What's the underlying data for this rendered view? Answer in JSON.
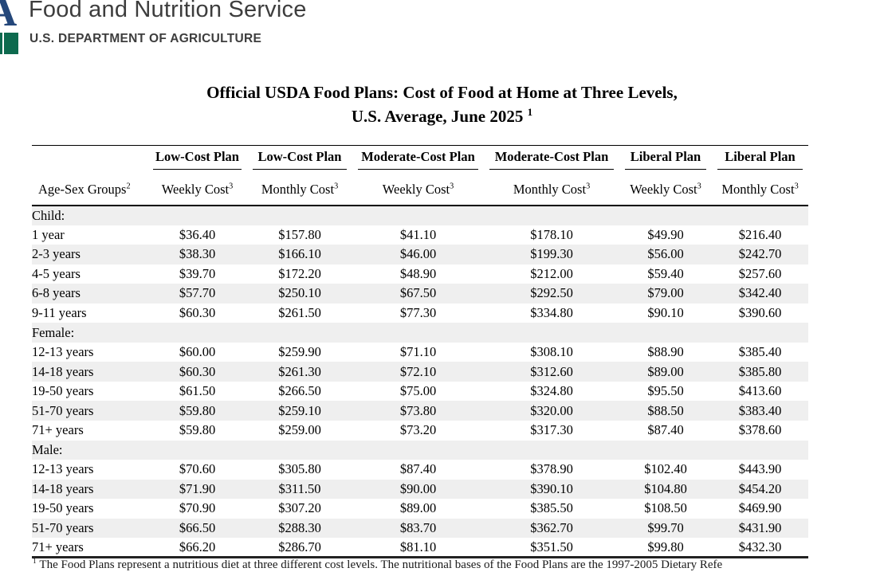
{
  "agency_header": {
    "name": "Food and Nutrition Service",
    "department": "U.S. DEPARTMENT OF AGRICULTURE",
    "logo": {
      "letter": "A",
      "blue": "#24477a",
      "green": "#0d6a4e"
    }
  },
  "title": {
    "line1": "Official USDA Food Plans: Cost of Food at Home at Three Levels,",
    "line2": "U.S. Average, June 2025",
    "footnote_ref": "1"
  },
  "table": {
    "row_header_label": "Age-Sex Groups",
    "row_header_sup": "2",
    "plan_columns": [
      {
        "plan": "Low-Cost Plan",
        "cost": "Weekly Cost",
        "sup": "3"
      },
      {
        "plan": "Low-Cost Plan",
        "cost": "Monthly Cost",
        "sup": "3"
      },
      {
        "plan": "Moderate-Cost Plan",
        "cost": "Weekly Cost",
        "sup": "3"
      },
      {
        "plan": "Moderate-Cost Plan",
        "cost": "Monthly Cost",
        "sup": "3"
      },
      {
        "plan": "Liberal Plan",
        "cost": "Weekly Cost",
        "sup": "3"
      },
      {
        "plan": "Liberal Plan",
        "cost": "Monthly Cost",
        "sup": "3"
      }
    ],
    "sections": [
      {
        "label": "Child:",
        "rows": [
          {
            "group": "1 year",
            "values": [
              "$36.40",
              "$157.80",
              "$41.10",
              "$178.10",
              "$49.90",
              "$216.40"
            ]
          },
          {
            "group": "2-3 years",
            "values": [
              "$38.30",
              "$166.10",
              "$46.00",
              "$199.30",
              "$56.00",
              "$242.70"
            ]
          },
          {
            "group": "4-5 years",
            "values": [
              "$39.70",
              "$172.20",
              "$48.90",
              "$212.00",
              "$59.40",
              "$257.60"
            ]
          },
          {
            "group": "6-8 years",
            "values": [
              "$57.70",
              "$250.10",
              "$67.50",
              "$292.50",
              "$79.00",
              "$342.40"
            ]
          },
          {
            "group": "9-11 years",
            "values": [
              "$60.30",
              "$261.50",
              "$77.30",
              "$334.80",
              "$90.10",
              "$390.60"
            ]
          }
        ]
      },
      {
        "label": "Female:",
        "rows": [
          {
            "group": "12-13 years",
            "values": [
              "$60.00",
              "$259.90",
              "$71.10",
              "$308.10",
              "$88.90",
              "$385.40"
            ]
          },
          {
            "group": "14-18 years",
            "values": [
              "$60.30",
              "$261.30",
              "$72.10",
              "$312.60",
              "$89.00",
              "$385.80"
            ]
          },
          {
            "group": "19-50 years",
            "values": [
              "$61.50",
              "$266.50",
              "$75.00",
              "$324.80",
              "$95.50",
              "$413.60"
            ]
          },
          {
            "group": "51-70 years",
            "values": [
              "$59.80",
              "$259.10",
              "$73.80",
              "$320.00",
              "$88.50",
              "$383.40"
            ]
          },
          {
            "group": "71+ years",
            "values": [
              "$59.80",
              "$259.00",
              "$73.20",
              "$317.30",
              "$87.40",
              "$378.60"
            ]
          }
        ]
      },
      {
        "label": "Male:",
        "rows": [
          {
            "group": "12-13 years",
            "values": [
              "$70.60",
              "$305.80",
              "$87.40",
              "$378.90",
              "$102.40",
              "$443.90"
            ]
          },
          {
            "group": "14-18 years",
            "values": [
              "$71.90",
              "$311.50",
              "$90.00",
              "$390.10",
              "$104.80",
              "$454.20"
            ]
          },
          {
            "group": "19-50 years",
            "values": [
              "$70.90",
              "$307.20",
              "$89.00",
              "$385.50",
              "$108.50",
              "$469.90"
            ]
          },
          {
            "group": "51-70 years",
            "values": [
              "$66.50",
              "$288.30",
              "$83.70",
              "$362.70",
              "$99.70",
              "$431.90"
            ]
          },
          {
            "group": "71+ years",
            "values": [
              "$66.20",
              "$286.70",
              "$81.10",
              "$351.50",
              "$99.80",
              "$432.30"
            ]
          }
        ]
      }
    ]
  },
  "footnote": {
    "ref": "1",
    "text": "The Food Plans represent a nutritious diet at three different cost levels. The nutritional bases of the Food Plans are the 1997-2005 Dietary Refe"
  },
  "colors": {
    "zebra_stripe": "#efefef",
    "rule_black": "#000000",
    "header_text": "#3d3d3d",
    "logo_blue": "#24477a",
    "logo_green": "#0d6a4e"
  }
}
